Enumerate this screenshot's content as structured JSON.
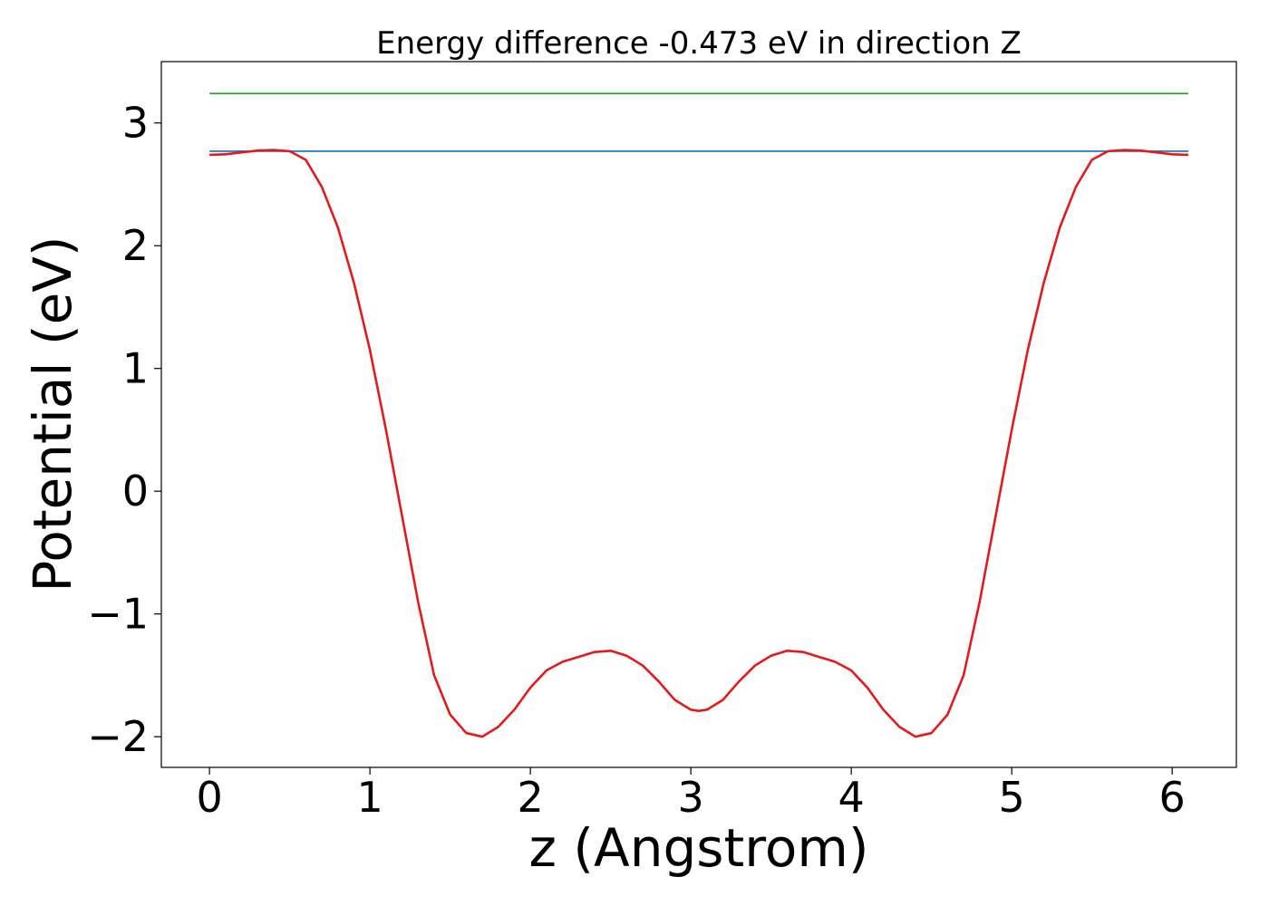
{
  "chart_data": {
    "type": "line",
    "title": "Energy difference -0.473 eV in direction Z",
    "xlabel": "z (Angstrom)",
    "ylabel": "Potential (eV)",
    "xlim": [
      -0.3,
      6.4
    ],
    "ylim": [
      -2.25,
      3.5
    ],
    "xticks": [
      0,
      1,
      2,
      3,
      4,
      5,
      6
    ],
    "xtick_labels": [
      "0",
      "1",
      "2",
      "3",
      "4",
      "5",
      "6"
    ],
    "yticks": [
      -2,
      -1,
      0,
      1,
      2,
      3
    ],
    "ytick_labels": [
      "−2",
      "−1",
      "0",
      "1",
      "2",
      "3"
    ],
    "grid": false,
    "series": [
      {
        "color": "#2ca02c",
        "x": [
          0,
          6.1
        ],
        "y": [
          3.24,
          3.24
        ]
      },
      {
        "color": "#1f77b4",
        "x": [
          0,
          6.1
        ],
        "y": [
          2.77,
          2.77
        ]
      },
      {
        "color": "#e31a1c",
        "x": [
          0.0,
          0.1,
          0.2,
          0.3,
          0.4,
          0.5,
          0.6,
          0.7,
          0.8,
          0.9,
          1.0,
          1.1,
          1.2,
          1.3,
          1.4,
          1.5,
          1.6,
          1.7,
          1.8,
          1.9,
          2.0,
          2.1,
          2.2,
          2.3,
          2.4,
          2.5,
          2.6,
          2.7,
          2.8,
          2.9,
          3.0,
          3.05,
          3.1,
          3.2,
          3.3,
          3.4,
          3.5,
          3.6,
          3.7,
          3.8,
          3.9,
          4.0,
          4.1,
          4.2,
          4.3,
          4.4,
          4.5,
          4.6,
          4.7,
          4.8,
          4.9,
          5.0,
          5.1,
          5.2,
          5.3,
          5.4,
          5.5,
          5.6,
          5.7,
          5.8,
          5.9,
          6.0,
          6.1
        ],
        "y": [
          2.74,
          2.745,
          2.76,
          2.775,
          2.78,
          2.77,
          2.7,
          2.48,
          2.15,
          1.7,
          1.15,
          0.5,
          -0.2,
          -0.9,
          -1.5,
          -1.82,
          -1.97,
          -2.0,
          -1.92,
          -1.78,
          -1.6,
          -1.46,
          -1.39,
          -1.35,
          -1.31,
          -1.3,
          -1.34,
          -1.42,
          -1.55,
          -1.7,
          -1.78,
          -1.79,
          -1.78,
          -1.7,
          -1.55,
          -1.42,
          -1.34,
          -1.3,
          -1.31,
          -1.35,
          -1.39,
          -1.46,
          -1.6,
          -1.78,
          -1.92,
          -2.0,
          -1.97,
          -1.82,
          -1.5,
          -0.9,
          -0.2,
          0.5,
          1.15,
          1.7,
          2.15,
          2.48,
          2.7,
          2.77,
          2.78,
          2.775,
          2.76,
          2.745,
          2.74
        ]
      }
    ]
  }
}
